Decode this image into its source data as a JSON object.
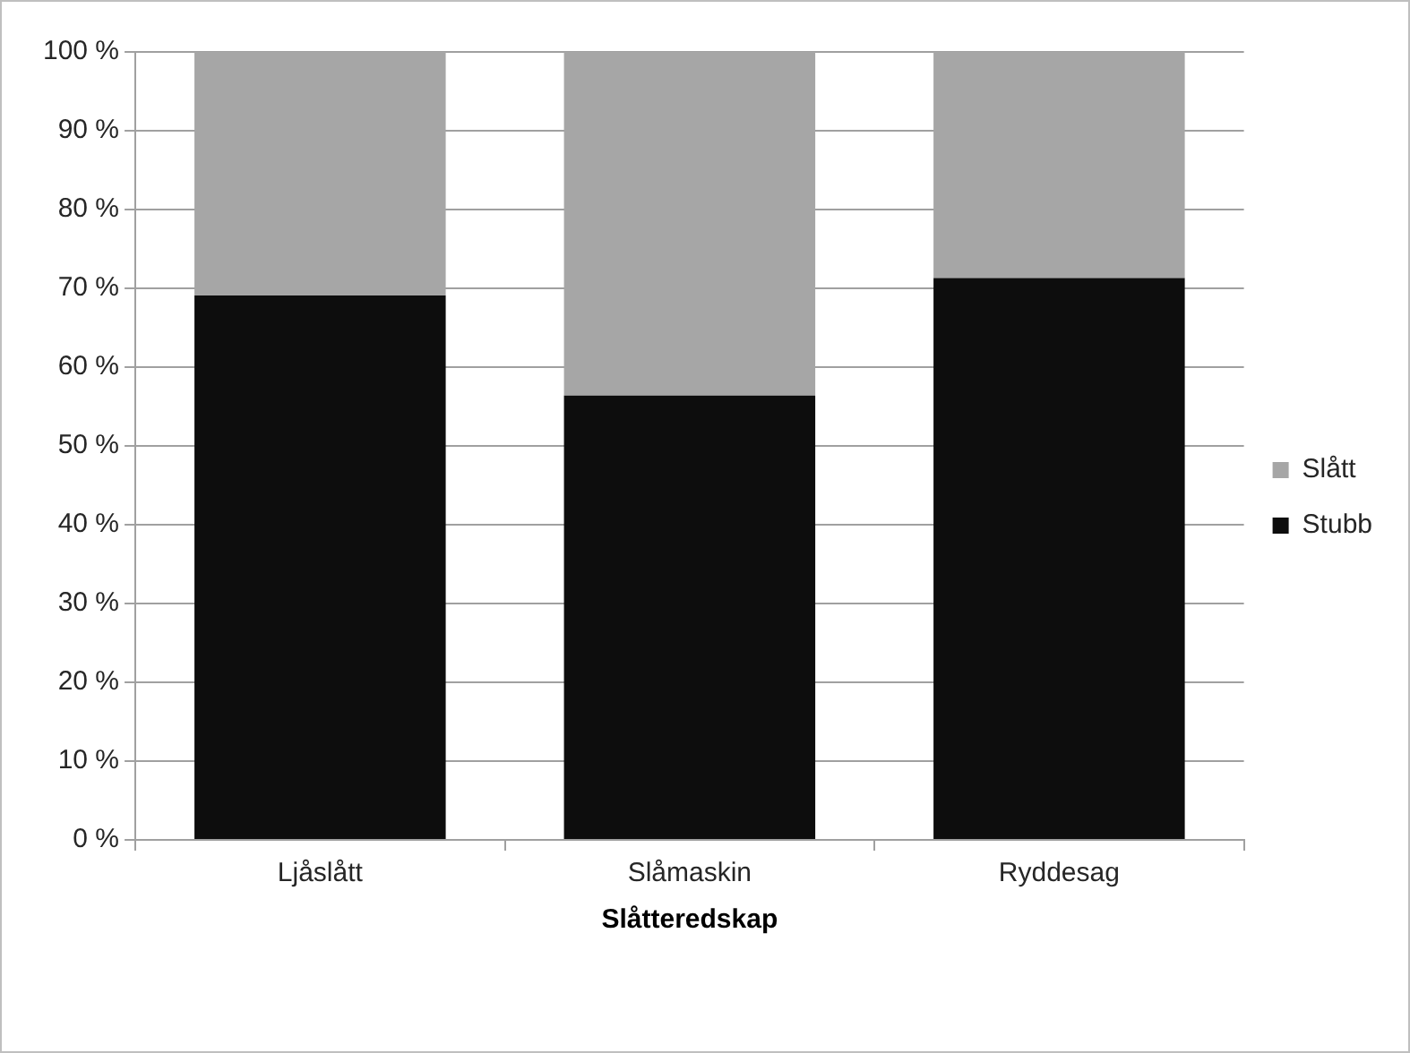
{
  "chart_data": {
    "type": "bar",
    "stacked": true,
    "xlabel": "Slåtteredskap",
    "categories": [
      "Ljåslått",
      "Slåmaskin",
      "Ryddesag"
    ],
    "series": [
      {
        "name": "Stubb",
        "color": "#0d0d0d",
        "values": [
          69.1,
          56.4,
          71.3
        ]
      },
      {
        "name": "Slått",
        "color": "#a6a6a6",
        "values": [
          30.9,
          43.6,
          28.7
        ]
      }
    ],
    "ylim": [
      0,
      100
    ],
    "yticks": [
      {
        "value": 0,
        "label": "0 %"
      },
      {
        "value": 10,
        "label": "10 %"
      },
      {
        "value": 20,
        "label": "20 %"
      },
      {
        "value": 30,
        "label": "30 %"
      },
      {
        "value": 40,
        "label": "40 %"
      },
      {
        "value": 50,
        "label": "50 %"
      },
      {
        "value": 60,
        "label": "60 %"
      },
      {
        "value": 70,
        "label": "70 %"
      },
      {
        "value": 80,
        "label": "80 %"
      },
      {
        "value": 90,
        "label": "90 %"
      },
      {
        "value": 100,
        "label": "100 %"
      }
    ],
    "grid": "y",
    "legend": "right"
  }
}
